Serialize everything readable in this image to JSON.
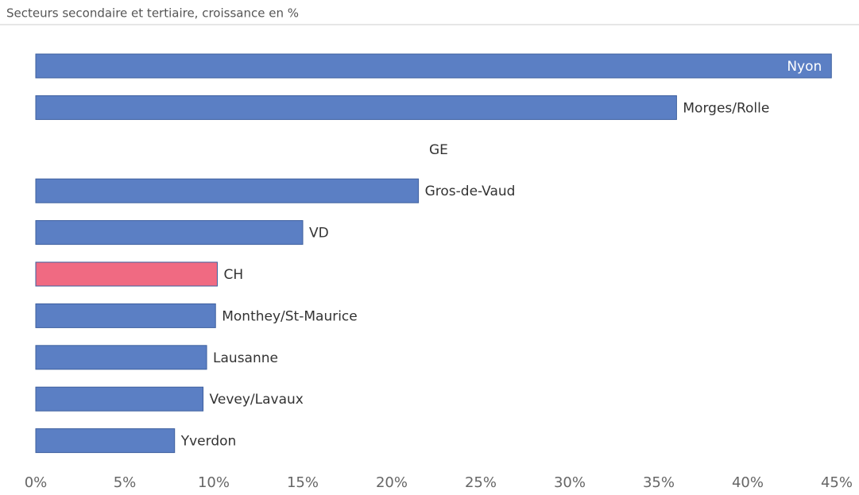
{
  "chart_data": {
    "type": "bar",
    "orientation": "horizontal",
    "title": "Secteurs secondaire et tertiaire, croissance en %",
    "categories": [
      "Nyon",
      "Morges/Rolle",
      "GE",
      "Gros-de-Vaud",
      "VD",
      "CH",
      "Monthey/St-Maurice",
      "Lausanne",
      "Vevey/Lavaux",
      "Yverdon"
    ],
    "values": [
      44.7,
      36.0,
      null,
      21.5,
      15.0,
      10.2,
      10.1,
      9.6,
      9.4,
      7.8
    ],
    "colors": [
      "#5b7fc4",
      "#5b7fc4",
      "#5b7fc4",
      "#5b7fc4",
      "#5b7fc4",
      "#f06a82",
      "#5b7fc4",
      "#5b7fc4",
      "#5b7fc4",
      "#5b7fc4"
    ],
    "xlim": [
      0,
      45
    ],
    "xticks": [
      {
        "value": 0,
        "label": "0%"
      },
      {
        "value": 5,
        "label": "5%"
      },
      {
        "value": 10,
        "label": "10%"
      },
      {
        "value": 15,
        "label": "15%"
      },
      {
        "value": 20,
        "label": "20%"
      },
      {
        "value": 25,
        "label": "25%"
      },
      {
        "value": 30,
        "label": "30%"
      },
      {
        "value": 35,
        "label": "35%"
      },
      {
        "value": 40,
        "label": "40%"
      },
      {
        "value": 45,
        "label": "45%"
      }
    ],
    "grid": false
  }
}
